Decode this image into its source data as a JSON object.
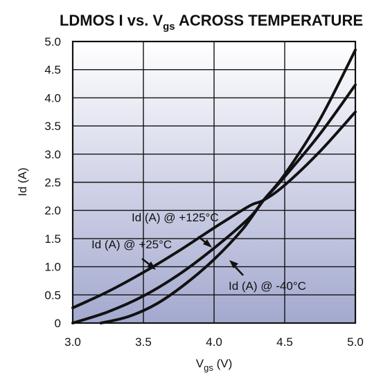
{
  "chart_data": {
    "type": "line",
    "title": {
      "prefix": "LDMOS I vs. V",
      "sub": "gs",
      "suffix": " ACROSS TEMPERATURE"
    },
    "xlabel": {
      "main": "V",
      "sub": "gs",
      "suffix": " (V)"
    },
    "ylabel": "Id (A)",
    "xlim": [
      3.0,
      5.0
    ],
    "ylim": [
      0,
      5.0
    ],
    "x_ticks": [
      "3.0",
      "3.5",
      "4.0",
      "4.5",
      "5.0"
    ],
    "y_ticks": [
      "0",
      "0.5",
      "1.0",
      "1.5",
      "2.0",
      "2.5",
      "3.0",
      "3.5",
      "4.0",
      "4.5",
      "5.0"
    ],
    "grid": true,
    "series": [
      {
        "name": "Id (A) @ +25°C",
        "x": [
          3.0,
          3.25,
          3.5,
          3.75,
          4.0,
          4.25,
          4.35,
          4.5,
          4.75,
          5.0
        ],
        "y": [
          0.27,
          0.56,
          0.9,
          1.28,
          1.69,
          2.08,
          2.18,
          2.45,
          3.05,
          3.75
        ]
      },
      {
        "name": "Id (A) @ +125°C",
        "x": [
          3.0,
          3.25,
          3.5,
          3.75,
          4.0,
          4.25,
          4.35,
          4.5,
          4.75,
          5.0
        ],
        "y": [
          0.0,
          0.2,
          0.48,
          0.86,
          1.33,
          1.87,
          2.18,
          2.6,
          3.36,
          4.23
        ]
      },
      {
        "name": "Id (A) @ -40°C",
        "x": [
          3.2,
          3.4,
          3.6,
          3.8,
          4.0,
          4.2,
          4.35,
          4.5,
          4.75,
          5.0
        ],
        "y": [
          0.0,
          0.12,
          0.35,
          0.7,
          1.13,
          1.66,
          2.18,
          2.64,
          3.62,
          4.85
        ]
      }
    ],
    "annotations": [
      {
        "text": "Id (A) @ +125°C"
      },
      {
        "text": "Id (A) @ +25°C"
      },
      {
        "text": "Id (A) @ -40°C"
      }
    ]
  }
}
